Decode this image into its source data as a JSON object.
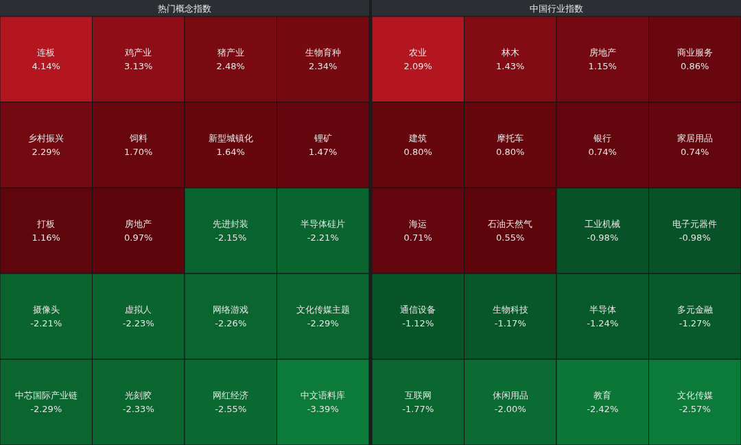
{
  "chart_data": [
    {
      "type": "other",
      "title": "热门概念指数",
      "categories": [
        "连板",
        "鸡产业",
        "猪产业",
        "生物育种",
        "乡村振兴",
        "饲料",
        "新型城镇化",
        "锂矿",
        "打板",
        "房地产",
        "先进封装",
        "半导体硅片",
        "摄像头",
        "虚拟人",
        "网络游戏",
        "文化传媒主题",
        "中芯国际产业链",
        "光刻胶",
        "网红经济",
        "中文语料库"
      ],
      "values": [
        4.14,
        3.13,
        2.48,
        2.34,
        2.29,
        1.7,
        1.64,
        1.47,
        1.16,
        0.97,
        -2.15,
        -2.21,
        -2.21,
        -2.23,
        -2.26,
        -2.29,
        -2.29,
        -2.33,
        -2.55,
        -3.39
      ],
      "value_labels": [
        "4.14%",
        "3.13%",
        "2.48%",
        "2.34%",
        "2.29%",
        "1.70%",
        "1.64%",
        "1.47%",
        "1.16%",
        "0.97%",
        "-2.15%",
        "-2.21%",
        "-2.21%",
        "-2.23%",
        "-2.26%",
        "-2.29%",
        "-2.29%",
        "-2.33%",
        "-2.55%",
        "-3.39%"
      ]
    },
    {
      "type": "other",
      "title": "中国行业指数",
      "categories": [
        "农业",
        "林木",
        "房地产",
        "商业服务",
        "建筑",
        "摩托车",
        "银行",
        "家居用品",
        "海运",
        "石油天然气",
        "工业机械",
        "电子元器件",
        "通信设备",
        "生物科技",
        "半导体",
        "多元金融",
        "互联网",
        "休闲用品",
        "教育",
        "文化传媒"
      ],
      "values": [
        2.09,
        1.43,
        1.15,
        0.86,
        0.8,
        0.8,
        0.74,
        0.74,
        0.71,
        0.55,
        -0.98,
        -0.98,
        -1.12,
        -1.17,
        -1.24,
        -1.27,
        -1.77,
        -2.0,
        -2.42,
        -2.57
      ],
      "value_labels": [
        "2.09%",
        "1.43%",
        "1.15%",
        "0.86%",
        "0.80%",
        "0.80%",
        "0.74%",
        "0.74%",
        "0.71%",
        "0.55%",
        "-0.98%",
        "-0.98%",
        "-1.12%",
        "-1.17%",
        "-1.24%",
        "-1.27%",
        "-1.77%",
        "-2.00%",
        "-2.42%",
        "-2.57%"
      ]
    }
  ]
}
